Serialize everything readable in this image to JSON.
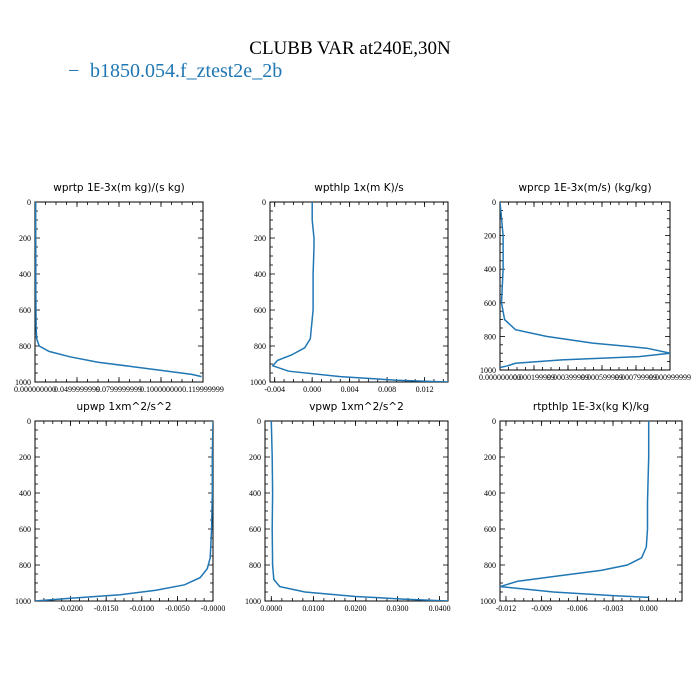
{
  "header": {
    "title": "CLUBB VAR at240E,30N",
    "legend_line": "−",
    "legend_label": "b1850.054.f_ztest2e_2b"
  },
  "colors": {
    "series": "#1f77b4",
    "axes": "#000000"
  },
  "chart_data": [
    {
      "type": "line",
      "title": "wprtp  1E-3x(m kg)/(s kg)",
      "xlim": [
        0,
        0.12
      ],
      "ylim": [
        0,
        1000
      ],
      "y_inverted": true,
      "xtick_labels": [
        "0.000000000",
        "0.0499999999",
        "0.0799999999",
        "0.100000000",
        "0.119999999"
      ],
      "yticks": [
        0,
        200,
        400,
        600,
        800,
        1000
      ],
      "series": [
        {
          "x": [
            0.0005,
            0.0005,
            0.0006,
            0.0006,
            0.0008,
            0.0012,
            0.003,
            0.01,
            0.025,
            0.045,
            0.07,
            0.095,
            0.112,
            0.119
          ],
          "y": [
            0,
            100,
            300,
            500,
            700,
            760,
            800,
            830,
            860,
            890,
            915,
            940,
            958,
            970
          ]
        }
      ]
    },
    {
      "type": "line",
      "title": "wpthlp  1x(m K)/s",
      "xlim": [
        -0.0045,
        0.0145
      ],
      "ylim": [
        0,
        1000
      ],
      "y_inverted": true,
      "xtick_labels": [
        "-0.004",
        "0.000",
        "0.004",
        "0.008",
        "0.012"
      ],
      "xtick_values": [
        -0.004,
        0.0,
        0.004,
        0.008,
        0.012
      ],
      "yticks": [
        0,
        200,
        400,
        600,
        800,
        1000
      ],
      "series": [
        {
          "x": [
            0.0,
            0.0,
            0.0002,
            0.0002,
            0.0001,
            0.0001,
            -0.0002,
            -0.0008,
            -0.0022,
            -0.0037,
            -0.0042,
            -0.0025,
            0.003,
            0.009,
            0.0145
          ],
          "y": [
            0,
            100,
            200,
            250,
            400,
            600,
            760,
            810,
            850,
            880,
            910,
            940,
            970,
            990,
            1000
          ]
        }
      ]
    },
    {
      "type": "line",
      "title": "wprcp  1E-3x(m/s) (kg/kg)",
      "xlim": [
        0,
        0.0011
      ],
      "ylim": [
        0,
        1000
      ],
      "y_inverted": true,
      "xtick_labels": [
        "0.000000000",
        "0.000199999",
        "0.000399999",
        "0.000599999",
        "0.000799999",
        "0.000999999"
      ],
      "yticks": [
        0,
        200,
        400,
        600,
        800,
        1000
      ],
      "series": [
        {
          "x": [
            0.0,
            2e-05,
            2e-05,
            1e-05,
            3e-05,
            0.0001,
            0.0003,
            0.0006,
            0.00095,
            0.0011,
            0.0009,
            0.0004,
            0.0001,
            5e-05,
            0.0
          ],
          "y": [
            0,
            200,
            400,
            600,
            700,
            760,
            800,
            840,
            870,
            900,
            920,
            940,
            960,
            975,
            985
          ]
        }
      ]
    },
    {
      "type": "line",
      "title": "upwp  1xm^2/s^2",
      "xlim": [
        -0.025,
        0.0
      ],
      "ylim": [
        0,
        1000
      ],
      "y_inverted": true,
      "xtick_labels": [
        "-0.0200",
        "-0.0150",
        "-0.0100",
        "-0.0050",
        "-0.0000"
      ],
      "xtick_values": [
        -0.02,
        -0.015,
        -0.01,
        -0.005,
        0.0
      ],
      "yticks": [
        0,
        200,
        400,
        600,
        800,
        1000
      ],
      "series": [
        {
          "x": [
            0.0,
            -0.0001,
            -0.0001,
            -0.0002,
            -0.0004,
            -0.0008,
            -0.0018,
            -0.004,
            -0.008,
            -0.013,
            -0.02,
            -0.025
          ],
          "y": [
            0,
            200,
            400,
            600,
            760,
            820,
            870,
            910,
            940,
            965,
            985,
            1000
          ]
        }
      ]
    },
    {
      "type": "line",
      "title": "vpwp  1xm^2/s^2",
      "xlim": [
        -0.0015,
        0.042
      ],
      "ylim": [
        0,
        1000
      ],
      "y_inverted": true,
      "xtick_labels": [
        "0.0000",
        "0.0100",
        "0.0200",
        "0.0300",
        "0.0400"
      ],
      "xtick_values": [
        0.0,
        0.01,
        0.02,
        0.03,
        0.04
      ],
      "yticks": [
        0,
        200,
        400,
        600,
        800,
        1000
      ],
      "series": [
        {
          "x": [
            0.0,
            0.0002,
            0.0003,
            0.0002,
            0.0003,
            0.0006,
            0.002,
            0.008,
            0.02,
            0.032,
            0.042
          ],
          "y": [
            0,
            200,
            400,
            600,
            800,
            880,
            920,
            950,
            975,
            990,
            1000
          ]
        }
      ]
    },
    {
      "type": "line",
      "title": "rtpthlp  1E-3x(kg K)/kg",
      "xlim": [
        -0.0125,
        0.0028
      ],
      "ylim": [
        0,
        1000
      ],
      "y_inverted": true,
      "xtick_labels": [
        "-0.012",
        "-0.009",
        "-0.006",
        "-0.003",
        "0.000"
      ],
      "xtick_values": [
        -0.012,
        -0.009,
        -0.006,
        -0.003,
        0.0
      ],
      "yticks": [
        0,
        200,
        400,
        600,
        800,
        1000
      ],
      "series": [
        {
          "x": [
            0.0,
            0.0,
            -0.0001,
            -0.0001,
            -0.0002,
            -0.0006,
            -0.0018,
            -0.004,
            -0.0075,
            -0.011,
            -0.0125,
            -0.008,
            -0.003,
            0.0
          ],
          "y": [
            0,
            200,
            450,
            600,
            700,
            760,
            800,
            830,
            860,
            890,
            920,
            950,
            970,
            980
          ]
        }
      ]
    }
  ]
}
